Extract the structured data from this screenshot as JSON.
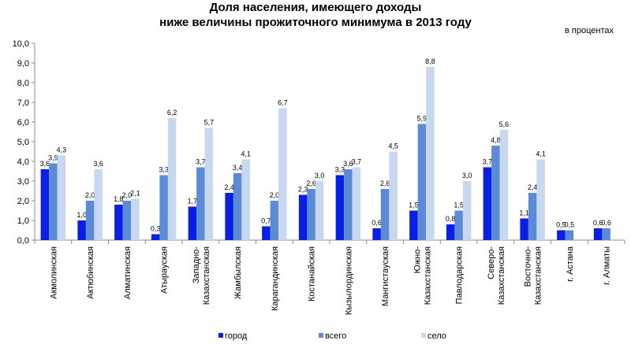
{
  "chart_data": {
    "type": "bar",
    "title_lines": [
      "Доля населения,  имеющего доходы",
      "ниже величины  прожиточного  минимума в 2013 году"
    ],
    "units": "в процентах",
    "categories": [
      "Акмолинская",
      "Актюбинская",
      "Алматинская",
      "Атырауская",
      "Западно-Казахстанская",
      "Жамбылская",
      "Карагандинская",
      "Костанайская",
      "Кызылординская",
      "Мангистауская",
      "Южно-Казахстанская",
      "Павлодарская",
      "Северо-Казахстанская",
      "Восточно-Казахстанская",
      "г. Астана",
      "г. Алматы"
    ],
    "category_lines": [
      [
        "Акмолинская"
      ],
      [
        "Актюбинская"
      ],
      [
        "Алматинская"
      ],
      [
        "Атырауская"
      ],
      [
        "Западно-",
        "Казахстанская"
      ],
      [
        "Жамбылская"
      ],
      [
        "Карагандинская"
      ],
      [
        "Костанайская"
      ],
      [
        "Кызылординская"
      ],
      [
        "Мангистауская"
      ],
      [
        "Южно-",
        "Казахстанская"
      ],
      [
        "Павлодарская"
      ],
      [
        "Северо-",
        "Казахстанская"
      ],
      [
        "Восточно-",
        "Казахстанская"
      ],
      [
        "г. Астана"
      ],
      [
        "г. Алматы"
      ]
    ],
    "series": [
      {
        "name": "город",
        "color": "#0a1ee6",
        "values": [
          3.6,
          1.0,
          1.8,
          0.3,
          1.7,
          2.4,
          0.7,
          2.3,
          3.3,
          0.6,
          1.5,
          0.8,
          3.7,
          1.1,
          0.5,
          0.6
        ],
        "labels": [
          "3,6",
          "1,0",
          "1,8",
          "0,3",
          "1,7",
          "2,4",
          "0,7",
          "2,3",
          "3,3",
          "0,6",
          "1,5",
          "0,8",
          "3,7",
          "1,1",
          "0,5",
          "0,6"
        ]
      },
      {
        "name": "всего",
        "color": "#5b8bd6",
        "values": [
          3.9,
          2.0,
          2.0,
          3.3,
          3.7,
          3.4,
          2.0,
          2.6,
          3.6,
          2.6,
          5.9,
          1.5,
          4.8,
          2.4,
          0.5,
          0.6
        ],
        "labels": [
          "3,9",
          "2,0",
          "2,0",
          "3,3",
          "3,7",
          "3,4",
          "2,0",
          "2,6",
          "3,6",
          "2,6",
          "5,9",
          "1,5",
          "4,8",
          "2,4",
          "0,5",
          "0,6"
        ]
      },
      {
        "name": "село",
        "color": "#c7d8f0",
        "values": [
          4.3,
          3.6,
          2.1,
          6.2,
          5.7,
          4.1,
          6.7,
          3.0,
          3.7,
          4.5,
          8.8,
          3.0,
          5.6,
          4.1,
          null,
          null
        ],
        "labels": [
          "4,3",
          "3,6",
          "2,1",
          "6,2",
          "5,7",
          "4,1",
          "6,7",
          "3,0",
          "3,7",
          "4,5",
          "8,8",
          "3,0",
          "5,6",
          "4,1",
          null,
          null
        ]
      }
    ],
    "ylim": [
      0,
      10
    ],
    "yticks": [
      0,
      1,
      2,
      3,
      4,
      5,
      6,
      7,
      8,
      9,
      10
    ],
    "ytick_labels": [
      "0,0",
      "1,0",
      "2,0",
      "3,0",
      "4,0",
      "5,0",
      "6,0",
      "7,0",
      "8,0",
      "9,0",
      "10,0"
    ],
    "grid": false,
    "legend_position": "bottom-center"
  }
}
